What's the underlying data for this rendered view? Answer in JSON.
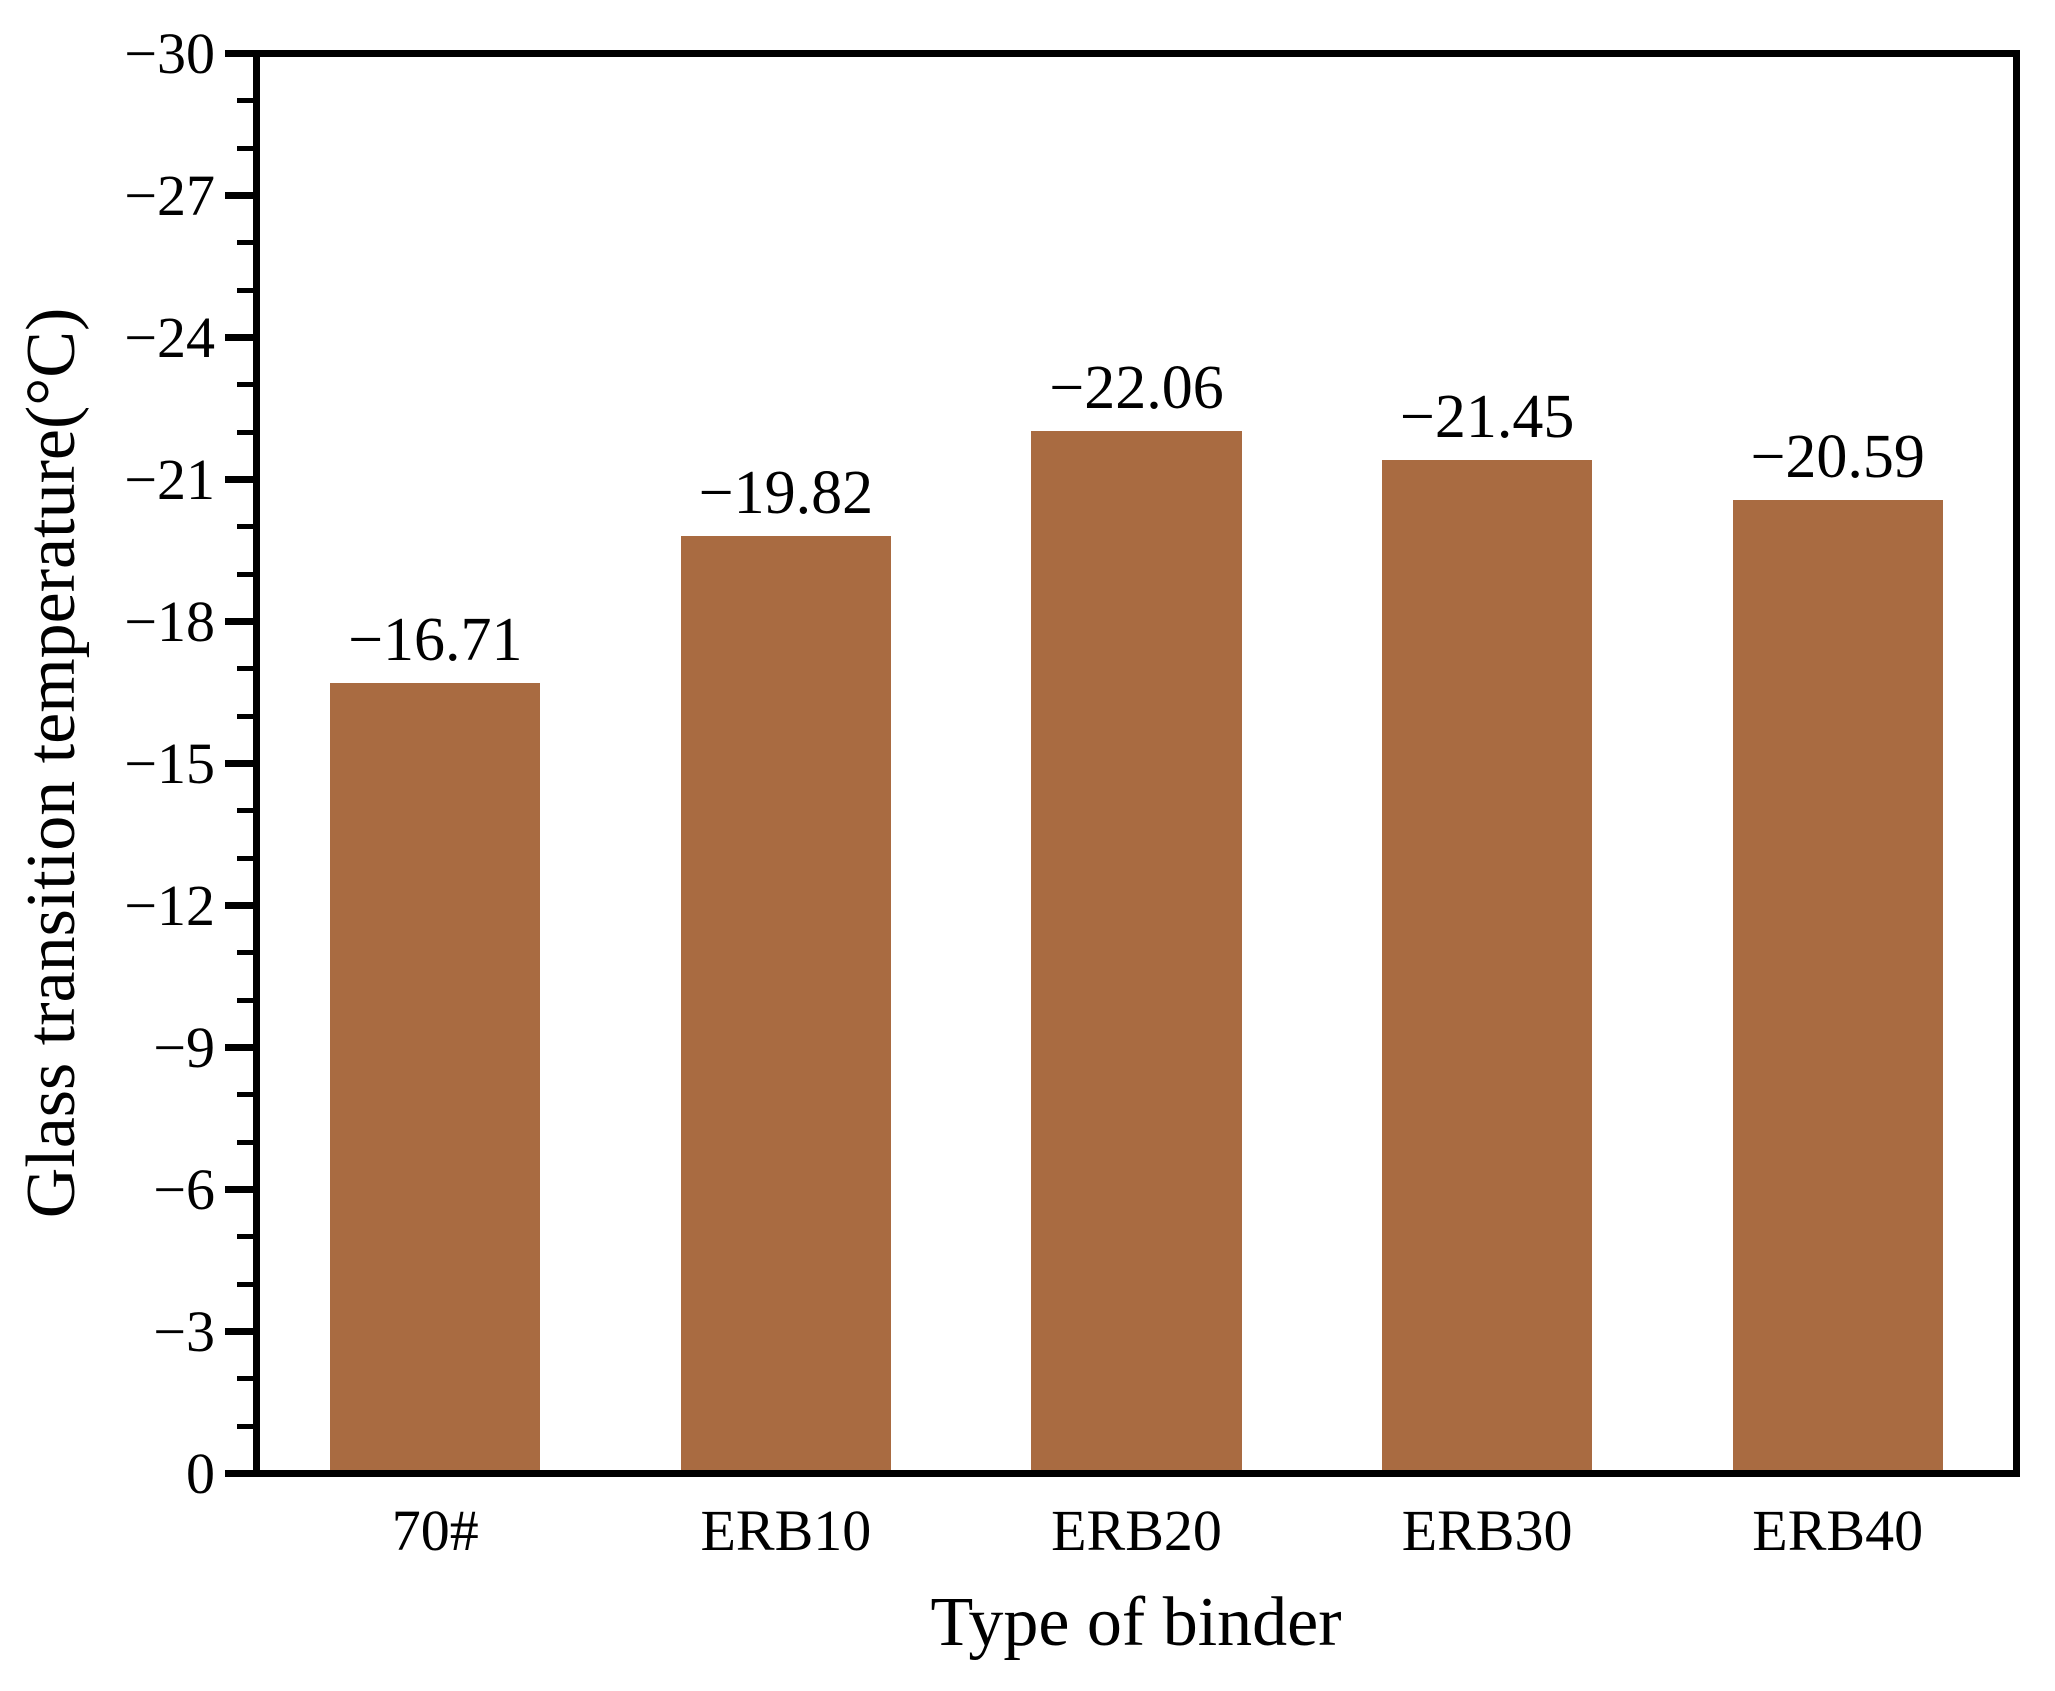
{
  "chart_data": {
    "type": "bar",
    "title": "",
    "xlabel": "Type of binder",
    "ylabel": "Glass transition temperature(°C)",
    "categories": [
      "70#",
      "ERB10",
      "ERB20",
      "ERB30",
      "ERB40"
    ],
    "values": [
      -16.71,
      -19.82,
      -22.06,
      -21.45,
      -20.59
    ],
    "value_labels": [
      "−16.71",
      "−19.82",
      "−22.06",
      "−21.45",
      "−20.59"
    ],
    "ylim": [
      0,
      -30
    ],
    "y_axis_inverted": true,
    "yticks": {
      "values": [
        -30,
        -27,
        -24,
        -21,
        -18,
        -15,
        -12,
        -9,
        -6,
        -3,
        0
      ],
      "labels": [
        "−30",
        "−27",
        "−24",
        "−21",
        "−18",
        "−15",
        "−12",
        "−9",
        "−6",
        "−3",
        "0"
      ]
    },
    "minor_tick_interval": 1,
    "grid": false,
    "legend": null,
    "bar_color": "#A96B41",
    "bar_width_frac": 0.6,
    "axis_color": "#000000",
    "text_color": "#000000"
  }
}
